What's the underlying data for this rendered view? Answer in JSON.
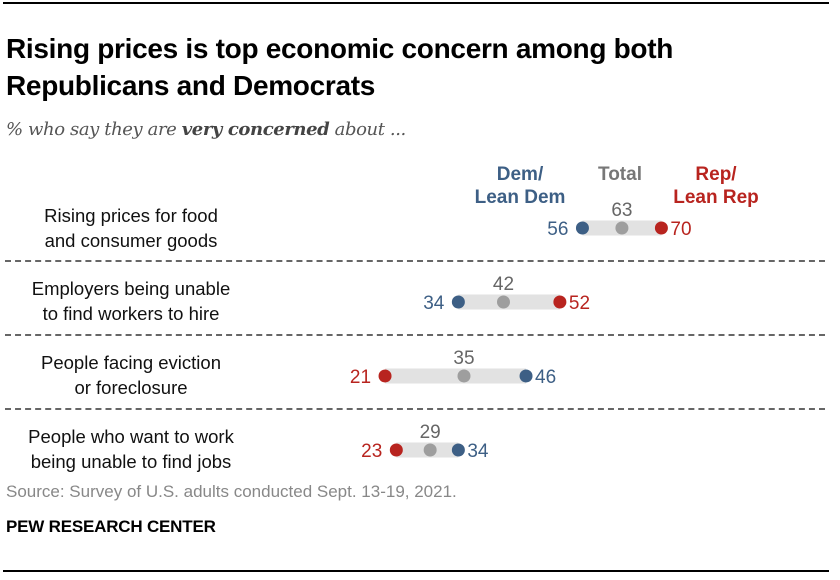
{
  "header": {
    "title": "Rising prices is top economic concern among both Republicans and Democrats",
    "subtitle_prefix": "% who say they are ",
    "subtitle_bold": "very concerned",
    "subtitle_suffix": " about ..."
  },
  "legend": {
    "dem": [
      "Dem/",
      "Lean Dem"
    ],
    "total": "Total",
    "rep": [
      "Rep/",
      "Lean Rep"
    ]
  },
  "colors": {
    "dem": "#3d5f85",
    "total": "#9e9e9e",
    "total_label": "#666666",
    "rep": "#b8241f",
    "bar": "#e2e2e2"
  },
  "chart_data": {
    "type": "dot-range",
    "title": "Rising prices is top economic concern among both Republicans and Democrats",
    "subtitle": "% who say they are very concerned about ...",
    "series": [
      {
        "name": "Dem/Lean Dem",
        "key": "dem",
        "values": [
          56,
          34,
          46,
          34
        ]
      },
      {
        "name": "Total",
        "key": "total",
        "values": [
          63,
          42,
          35,
          29
        ]
      },
      {
        "name": "Rep/Lean Rep",
        "key": "rep",
        "values": [
          70,
          52,
          21,
          23
        ]
      }
    ],
    "categories": [
      [
        "Rising prices for food",
        "and consumer goods"
      ],
      [
        "Employers being unable",
        "to find workers to hire"
      ],
      [
        "People facing eviction",
        "or foreclosure"
      ],
      [
        "People who want to work",
        "being unable to find jobs"
      ]
    ],
    "xlabel": "",
    "ylabel": "",
    "xlim": [
      0,
      100
    ],
    "grid": false,
    "legend_position": "top"
  },
  "source": "Source: Survey of U.S. adults conducted Sept. 13-19, 2021.",
  "footer": "PEW RESEARCH CENTER"
}
